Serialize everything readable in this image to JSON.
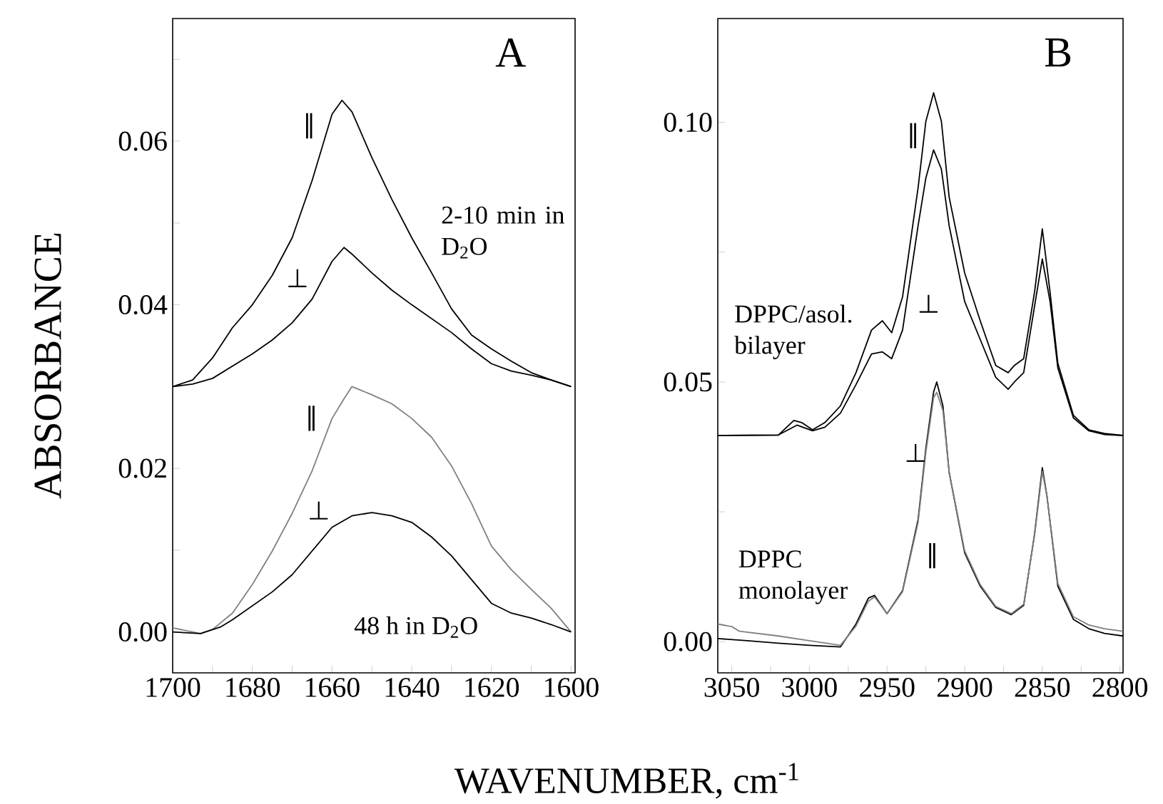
{
  "chart_data": [
    {
      "type": "line",
      "title": "A",
      "xlabel": "WAVENUMBER, cm$^{-1}$",
      "ylabel": "ABSORBANCE",
      "xlim": [
        1700,
        1599
      ],
      "ylim": [
        -0.005,
        0.075
      ],
      "xticks": [
        1700,
        {
          "value": 1690,
          "label": null
        },
        1680,
        {
          "value": 1670,
          "label": null
        },
        1660,
        {
          "value": 1650,
          "label": null
        },
        1640,
        {
          "value": 1630,
          "label": null
        },
        1620,
        {
          "value": 1610,
          "label": null
        },
        1600
      ],
      "yticks": [
        {
          "value": 0,
          "label": "0.00"
        },
        {
          "value": 0.01,
          "label": null
        },
        {
          "value": 0.02,
          "label": "0.02"
        },
        {
          "value": 0.03,
          "label": null
        },
        {
          "value": 0.04,
          "label": "0.04"
        },
        {
          "value": 0.05,
          "label": null
        },
        {
          "value": 0.06,
          "label": "0.06"
        },
        {
          "value": 0.07,
          "label": null
        }
      ],
      "series": [
        {
          "color": "#000000",
          "x": [
            1700,
            1695,
            1690,
            1685,
            1680,
            1675,
            1670,
            1665,
            1660,
            1657.5,
            1655,
            1650,
            1645,
            1640,
            1635,
            1630,
            1625,
            1620,
            1615,
            1610,
            1605,
            1600
          ],
          "values": [
            0.03,
            0.0308,
            0.0335,
            0.0372,
            0.04,
            0.0436,
            0.0482,
            0.0552,
            0.0633,
            0.065,
            0.0636,
            0.058,
            0.0529,
            0.0482,
            0.0439,
            0.0395,
            0.0363,
            0.0346,
            0.0331,
            0.0317,
            0.0308,
            0.03
          ]
        },
        {
          "color": "#000000",
          "x": [
            1700,
            1695,
            1690,
            1685,
            1680,
            1675,
            1670,
            1665,
            1660,
            1657,
            1655,
            1650,
            1645,
            1640,
            1635,
            1630,
            1625,
            1620,
            1615,
            1610,
            1605,
            1600
          ],
          "values": [
            0.03,
            0.0303,
            0.031,
            0.0325,
            0.034,
            0.0357,
            0.0378,
            0.0407,
            0.0453,
            0.047,
            0.0462,
            0.0439,
            0.0418,
            0.04,
            0.0383,
            0.0366,
            0.0346,
            0.0328,
            0.0319,
            0.0314,
            0.0308,
            0.03
          ]
        },
        {
          "color": "#808080",
          "x": [
            1700,
            1693,
            1690,
            1685,
            1680,
            1675,
            1670,
            1665,
            1660,
            1657,
            1655,
            1650,
            1645,
            1640,
            1635,
            1630,
            1625,
            1620,
            1615,
            1610,
            1605,
            1600
          ],
          "values": [
            0.0005,
            -0.0002,
            0.0003,
            0.0023,
            0.0058,
            0.0099,
            0.0145,
            0.0197,
            0.0261,
            0.0285,
            0.03,
            0.029,
            0.0279,
            0.0261,
            0.0238,
            0.0203,
            0.0157,
            0.0105,
            0.0076,
            0.0052,
            0.0029,
            0.0
          ]
        },
        {
          "color": "#000000",
          "x": [
            1700,
            1693,
            1688,
            1685,
            1680,
            1675,
            1670,
            1665,
            1660,
            1655,
            1650,
            1645,
            1640,
            1635,
            1630,
            1625,
            1620,
            1615,
            1610,
            1605,
            1600
          ],
          "values": [
            0.0,
            -0.0002,
            0.0006,
            0.0015,
            0.0032,
            0.0049,
            0.007,
            0.0099,
            0.0128,
            0.0142,
            0.0146,
            0.0142,
            0.0134,
            0.0116,
            0.0093,
            0.0064,
            0.0035,
            0.0023,
            0.0017,
            0.0009,
            0.0
          ]
        }
      ],
      "annotations": [
        "∥",
        "⊥",
        "∥",
        "⊥",
        "2-10 min in D$_{2}$O",
        "48 h in D$_{2}$O"
      ]
    },
    {
      "type": "line",
      "title": "B",
      "xlim": [
        3059,
        2798
      ],
      "ylim": [
        -0.006,
        0.12
      ],
      "xticks": [
        3050,
        {
          "value": 3025,
          "label": null
        },
        3000,
        {
          "value": 2975,
          "label": null
        },
        2950,
        {
          "value": 2925,
          "label": null
        },
        2900,
        {
          "value": 2875,
          "label": null
        },
        2850,
        {
          "value": 2825,
          "label": null
        },
        2800
      ],
      "yticks": [
        {
          "value": 0,
          "label": "0.00"
        },
        {
          "value": 0.025,
          "label": null
        },
        {
          "value": 0.05,
          "label": "0.05"
        },
        {
          "value": 0.075,
          "label": null
        },
        {
          "value": 0.1,
          "label": "0.10"
        }
      ],
      "series": [
        {
          "color": "#000000",
          "x": [
            3059,
            3020,
            3010,
            3005,
            2998,
            2990,
            2980,
            2970,
            2960,
            2953,
            2947,
            2940,
            2930,
            2925,
            2920,
            2915,
            2910,
            2900,
            2890,
            2880,
            2872,
            2868,
            2862,
            2855,
            2850,
            2845,
            2840,
            2830,
            2820,
            2810,
            2798
          ],
          "values": [
            0.0397,
            0.0398,
            0.0426,
            0.0422,
            0.0408,
            0.0422,
            0.0454,
            0.0518,
            0.06,
            0.0618,
            0.0595,
            0.0664,
            0.0874,
            0.1002,
            0.1057,
            0.1002,
            0.0856,
            0.071,
            0.0618,
            0.0532,
            0.0518,
            0.0532,
            0.0545,
            0.0673,
            0.0795,
            0.0673,
            0.0536,
            0.0436,
            0.0408,
            0.0401,
            0.0397
          ]
        },
        {
          "color": "#000000",
          "x": [
            3059,
            3020,
            3008,
            2998,
            2990,
            2980,
            2970,
            2960,
            2953,
            2947,
            2940,
            2930,
            2925,
            2920,
            2915,
            2910,
            2900,
            2890,
            2880,
            2872,
            2868,
            2862,
            2855,
            2850,
            2845,
            2840,
            2830,
            2820,
            2810,
            2798
          ],
          "values": [
            0.0397,
            0.0398,
            0.0417,
            0.0406,
            0.0413,
            0.044,
            0.0495,
            0.0554,
            0.0558,
            0.0545,
            0.06,
            0.0801,
            0.0893,
            0.0947,
            0.091,
            0.0801,
            0.0655,
            0.0582,
            0.0509,
            0.0486,
            0.05,
            0.0518,
            0.0646,
            0.0737,
            0.0655,
            0.0527,
            0.0431,
            0.0406,
            0.0399,
            0.0397
          ]
        },
        {
          "color": "#000000",
          "x": [
            3059,
            3040,
            3020,
            3000,
            2980,
            2970,
            2962,
            2958,
            2950,
            2940,
            2930,
            2925,
            2920,
            2918,
            2914,
            2910,
            2900,
            2890,
            2880,
            2870,
            2862,
            2855,
            2850,
            2847,
            2840,
            2830,
            2820,
            2810,
            2798
          ],
          "values": [
            0.0006,
            0.0002,
            -0.0003,
            -0.0007,
            -0.001,
            0.0034,
            0.0084,
            0.0089,
            0.0054,
            0.0098,
            0.0235,
            0.0372,
            0.0481,
            0.05,
            0.0454,
            0.0326,
            0.0171,
            0.0107,
            0.0066,
            0.0052,
            0.007,
            0.0207,
            0.0335,
            0.028,
            0.0107,
            0.0043,
            0.0025,
            0.0016,
            0.0011
          ]
        },
        {
          "color": "#808080",
          "x": [
            3059,
            3050,
            3045,
            3020,
            3000,
            2980,
            2970,
            2962,
            2958,
            2950,
            2940,
            2930,
            2925,
            2920,
            2918,
            2914,
            2910,
            2900,
            2890,
            2880,
            2870,
            2862,
            2855,
            2850,
            2847,
            2840,
            2830,
            2820,
            2810,
            2798
          ],
          "values": [
            0.0034,
            0.0029,
            0.002,
            0.0011,
            0.0002,
            -0.0007,
            0.003,
            0.0078,
            0.0086,
            0.0054,
            0.0096,
            0.023,
            0.0365,
            0.047,
            0.048,
            0.0445,
            0.0326,
            0.0175,
            0.011,
            0.0068,
            0.0054,
            0.0072,
            0.0205,
            0.0328,
            0.028,
            0.0112,
            0.0048,
            0.0032,
            0.0025,
            0.002
          ]
        }
      ],
      "annotations": [
        "∥",
        "⊥",
        "⊥",
        "∥",
        "DPPC/asol. bilayer",
        "DPPC monolayer"
      ]
    }
  ]
}
